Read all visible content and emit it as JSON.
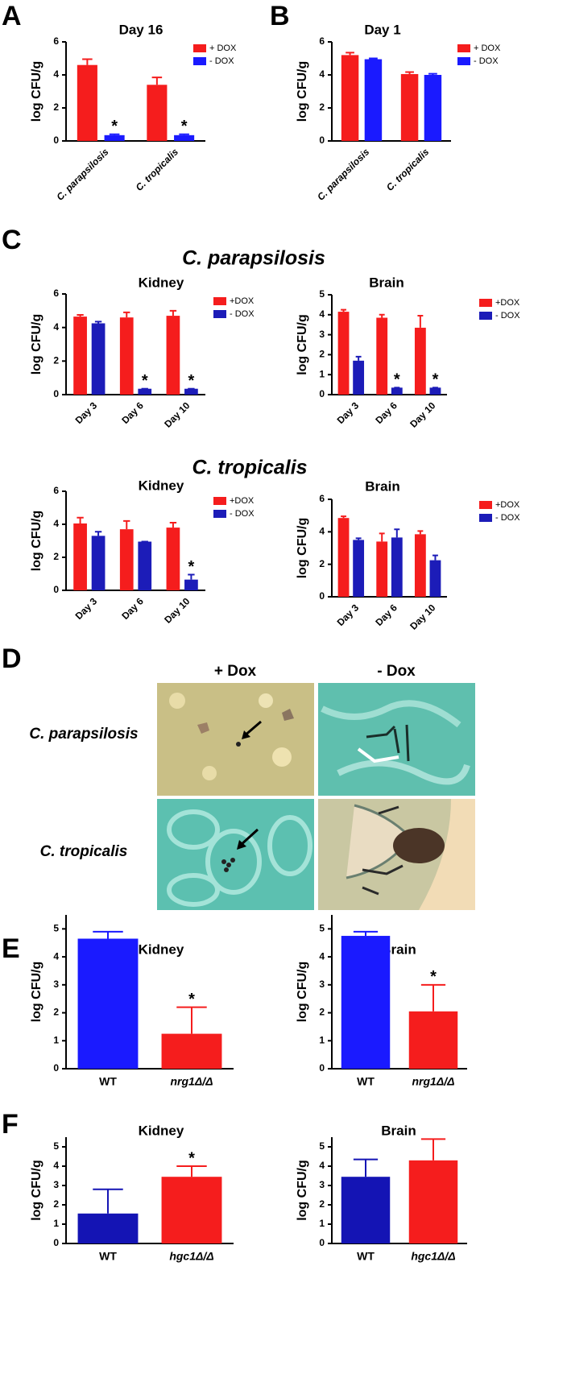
{
  "panel_letters": [
    "A",
    "B",
    "C",
    "D",
    "E",
    "F"
  ],
  "section_titles": [
    "C. parapsilosis",
    "C. tropicalis"
  ],
  "histology": {
    "column_labels": [
      "+ Dox",
      "- Dox"
    ],
    "row_labels": [
      "C. parapsilosis",
      "C. tropicalis"
    ]
  },
  "chart_data": [
    {
      "type": "bar",
      "title": "Day 16",
      "ylabel": "log CFU/g",
      "categories": [
        "C. parapsilosis",
        "C. tropicalis"
      ],
      "ylim": [
        0,
        6
      ],
      "yticks": [
        0,
        2,
        4,
        6
      ],
      "series": [
        {
          "name": "+ DOX",
          "color": "#f51d1d",
          "values": [
            4.6,
            3.4
          ],
          "errors": [
            0.35,
            0.45
          ]
        },
        {
          "name": "- DOX",
          "color": "#1a1aff",
          "values": [
            0.35,
            0.35
          ],
          "errors": [
            0.05,
            0.05
          ],
          "significance": [
            "*",
            "*"
          ]
        }
      ]
    },
    {
      "type": "bar",
      "title": "Day 1",
      "ylabel": "log CFU/g",
      "categories": [
        "C. parapsilosis",
        "C. tropicalis"
      ],
      "ylim": [
        0,
        6
      ],
      "yticks": [
        0,
        2,
        4,
        6
      ],
      "series": [
        {
          "name": "+ DOX",
          "color": "#f51d1d",
          "values": [
            5.2,
            4.05
          ],
          "errors": [
            0.15,
            0.12
          ]
        },
        {
          "name": "- DOX",
          "color": "#1a1aff",
          "values": [
            4.95,
            4.0
          ],
          "errors": [
            0.05,
            0.07
          ]
        }
      ]
    },
    {
      "type": "bar",
      "title": "Kidney",
      "ylabel": "log CFU/g",
      "categories": [
        "Day 3",
        "Day 6",
        "Day 10"
      ],
      "ylim": [
        0,
        6
      ],
      "yticks": [
        0,
        2,
        4,
        6
      ],
      "series": [
        {
          "name": "+DOX",
          "color": "#f51d1d",
          "values": [
            4.65,
            4.6,
            4.7
          ],
          "errors": [
            0.1,
            0.3,
            0.3
          ]
        },
        {
          "name": "- DOX",
          "color": "#1c1cb8",
          "values": [
            4.25,
            0.35,
            0.35
          ],
          "errors": [
            0.1,
            0,
            0
          ],
          "significance": [
            null,
            "*",
            "*"
          ]
        }
      ]
    },
    {
      "type": "bar",
      "title": "Brain",
      "ylabel": "log CFU/g",
      "categories": [
        "Day 3",
        "Day 6",
        "Day 10"
      ],
      "ylim": [
        0,
        5
      ],
      "yticks": [
        0,
        1,
        2,
        3,
        4,
        5
      ],
      "series": [
        {
          "name": "+DOX",
          "color": "#f51d1d",
          "values": [
            4.15,
            3.85,
            3.35
          ],
          "errors": [
            0.1,
            0.15,
            0.6
          ]
        },
        {
          "name": "- DOX",
          "color": "#1c1cb8",
          "values": [
            1.7,
            0.35,
            0.35
          ],
          "errors": [
            0.2,
            0,
            0
          ],
          "significance": [
            null,
            "*",
            "*"
          ]
        }
      ]
    },
    {
      "type": "bar",
      "title": "Kidney",
      "ylabel": "log CFU/g",
      "categories": [
        "Day 3",
        "Day 6",
        "Day 10"
      ],
      "ylim": [
        0,
        6
      ],
      "yticks": [
        0,
        2,
        4,
        6
      ],
      "series": [
        {
          "name": "+DOX",
          "color": "#f51d1d",
          "values": [
            4.05,
            3.7,
            3.8
          ],
          "errors": [
            0.35,
            0.5,
            0.3
          ]
        },
        {
          "name": "- DOX",
          "color": "#1c1cb8",
          "values": [
            3.3,
            2.95,
            0.65
          ],
          "errors": [
            0.25,
            0,
            0.3
          ],
          "significance": [
            null,
            null,
            "*"
          ]
        }
      ]
    },
    {
      "type": "bar",
      "title": "Brain",
      "ylabel": "log CFU/g",
      "categories": [
        "Day 3",
        "Day 6",
        "Day 10"
      ],
      "ylim": [
        0,
        6
      ],
      "yticks": [
        0,
        2,
        4,
        6
      ],
      "series": [
        {
          "name": "+DOX",
          "color": "#f51d1d",
          "values": [
            4.85,
            3.4,
            3.85
          ],
          "errors": [
            0.1,
            0.5,
            0.2
          ]
        },
        {
          "name": "- DOX",
          "color": "#1c1cb8",
          "values": [
            3.5,
            3.65,
            2.25
          ],
          "errors": [
            0.1,
            0.5,
            0.3
          ]
        }
      ]
    },
    {
      "type": "bar",
      "title": "Kidney",
      "ylabel": "log CFU/g",
      "categories": [
        "WT",
        "nrg1Δ/Δ"
      ],
      "ylim": [
        0,
        5.5
      ],
      "yticks": [
        0,
        1,
        2,
        3,
        4,
        5
      ],
      "values": [
        4.65,
        1.25
      ],
      "errors": [
        0.25,
        0.95
      ],
      "colors": [
        "#1a1aff",
        "#f51d1d"
      ],
      "significance": [
        null,
        "*"
      ]
    },
    {
      "type": "bar",
      "title": "Brain",
      "ylabel": "log CFU/g",
      "categories": [
        "WT",
        "nrg1Δ/Δ"
      ],
      "ylim": [
        0,
        5.5
      ],
      "yticks": [
        0,
        1,
        2,
        3,
        4,
        5
      ],
      "values": [
        4.75,
        2.05
      ],
      "errors": [
        0.15,
        0.95
      ],
      "colors": [
        "#1a1aff",
        "#f51d1d"
      ],
      "significance": [
        null,
        "*"
      ]
    },
    {
      "type": "bar",
      "title": "Kidney",
      "ylabel": "log CFU/g",
      "categories": [
        "WT",
        "hgc1Δ/Δ"
      ],
      "ylim": [
        0,
        5.5
      ],
      "yticks": [
        0,
        1,
        2,
        3,
        4,
        5
      ],
      "values": [
        1.55,
        3.45
      ],
      "errors": [
        1.25,
        0.55
      ],
      "colors": [
        "#1414b4",
        "#f51d1d"
      ],
      "significance": [
        null,
        "*"
      ]
    },
    {
      "type": "bar",
      "title": "Brain",
      "ylabel": "log CFU/g",
      "categories": [
        "WT",
        "hgc1Δ/Δ"
      ],
      "ylim": [
        0,
        5.5
      ],
      "yticks": [
        0,
        1,
        2,
        3,
        4,
        5
      ],
      "values": [
        3.45,
        4.3
      ],
      "errors": [
        0.9,
        1.1
      ],
      "colors": [
        "#1414b4",
        "#f51d1d"
      ]
    }
  ]
}
